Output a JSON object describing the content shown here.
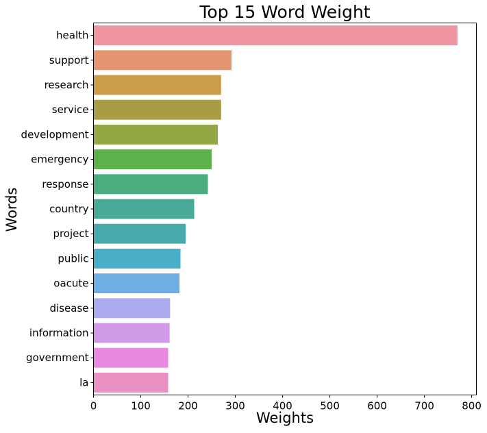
{
  "chart_data": {
    "type": "bar",
    "orientation": "horizontal",
    "title": "Top 15 Word Weight",
    "xlabel": "Weights",
    "ylabel": "Words",
    "xlim": [
      0,
      810
    ],
    "xticks": [
      0,
      100,
      200,
      300,
      400,
      500,
      600,
      700,
      800
    ],
    "grid": false,
    "categories": [
      "health",
      "support",
      "research",
      "service",
      "development",
      "emergency",
      "response",
      "country",
      "project",
      "public",
      "oacute",
      "disease",
      "information",
      "government",
      "la"
    ],
    "values": [
      770,
      292,
      270,
      270,
      263,
      250,
      242,
      213,
      195,
      184,
      182,
      162,
      161,
      158,
      158
    ],
    "colors": [
      "#ef95a2",
      "#e69573",
      "#cc9d4b",
      "#aa9c45",
      "#93a743",
      "#5eb04a",
      "#4aad7f",
      "#47ab98",
      "#48aaac",
      "#4aaec9",
      "#6eaee3",
      "#acaaee",
      "#d09ae8",
      "#e78adf",
      "#ea91c4"
    ]
  }
}
